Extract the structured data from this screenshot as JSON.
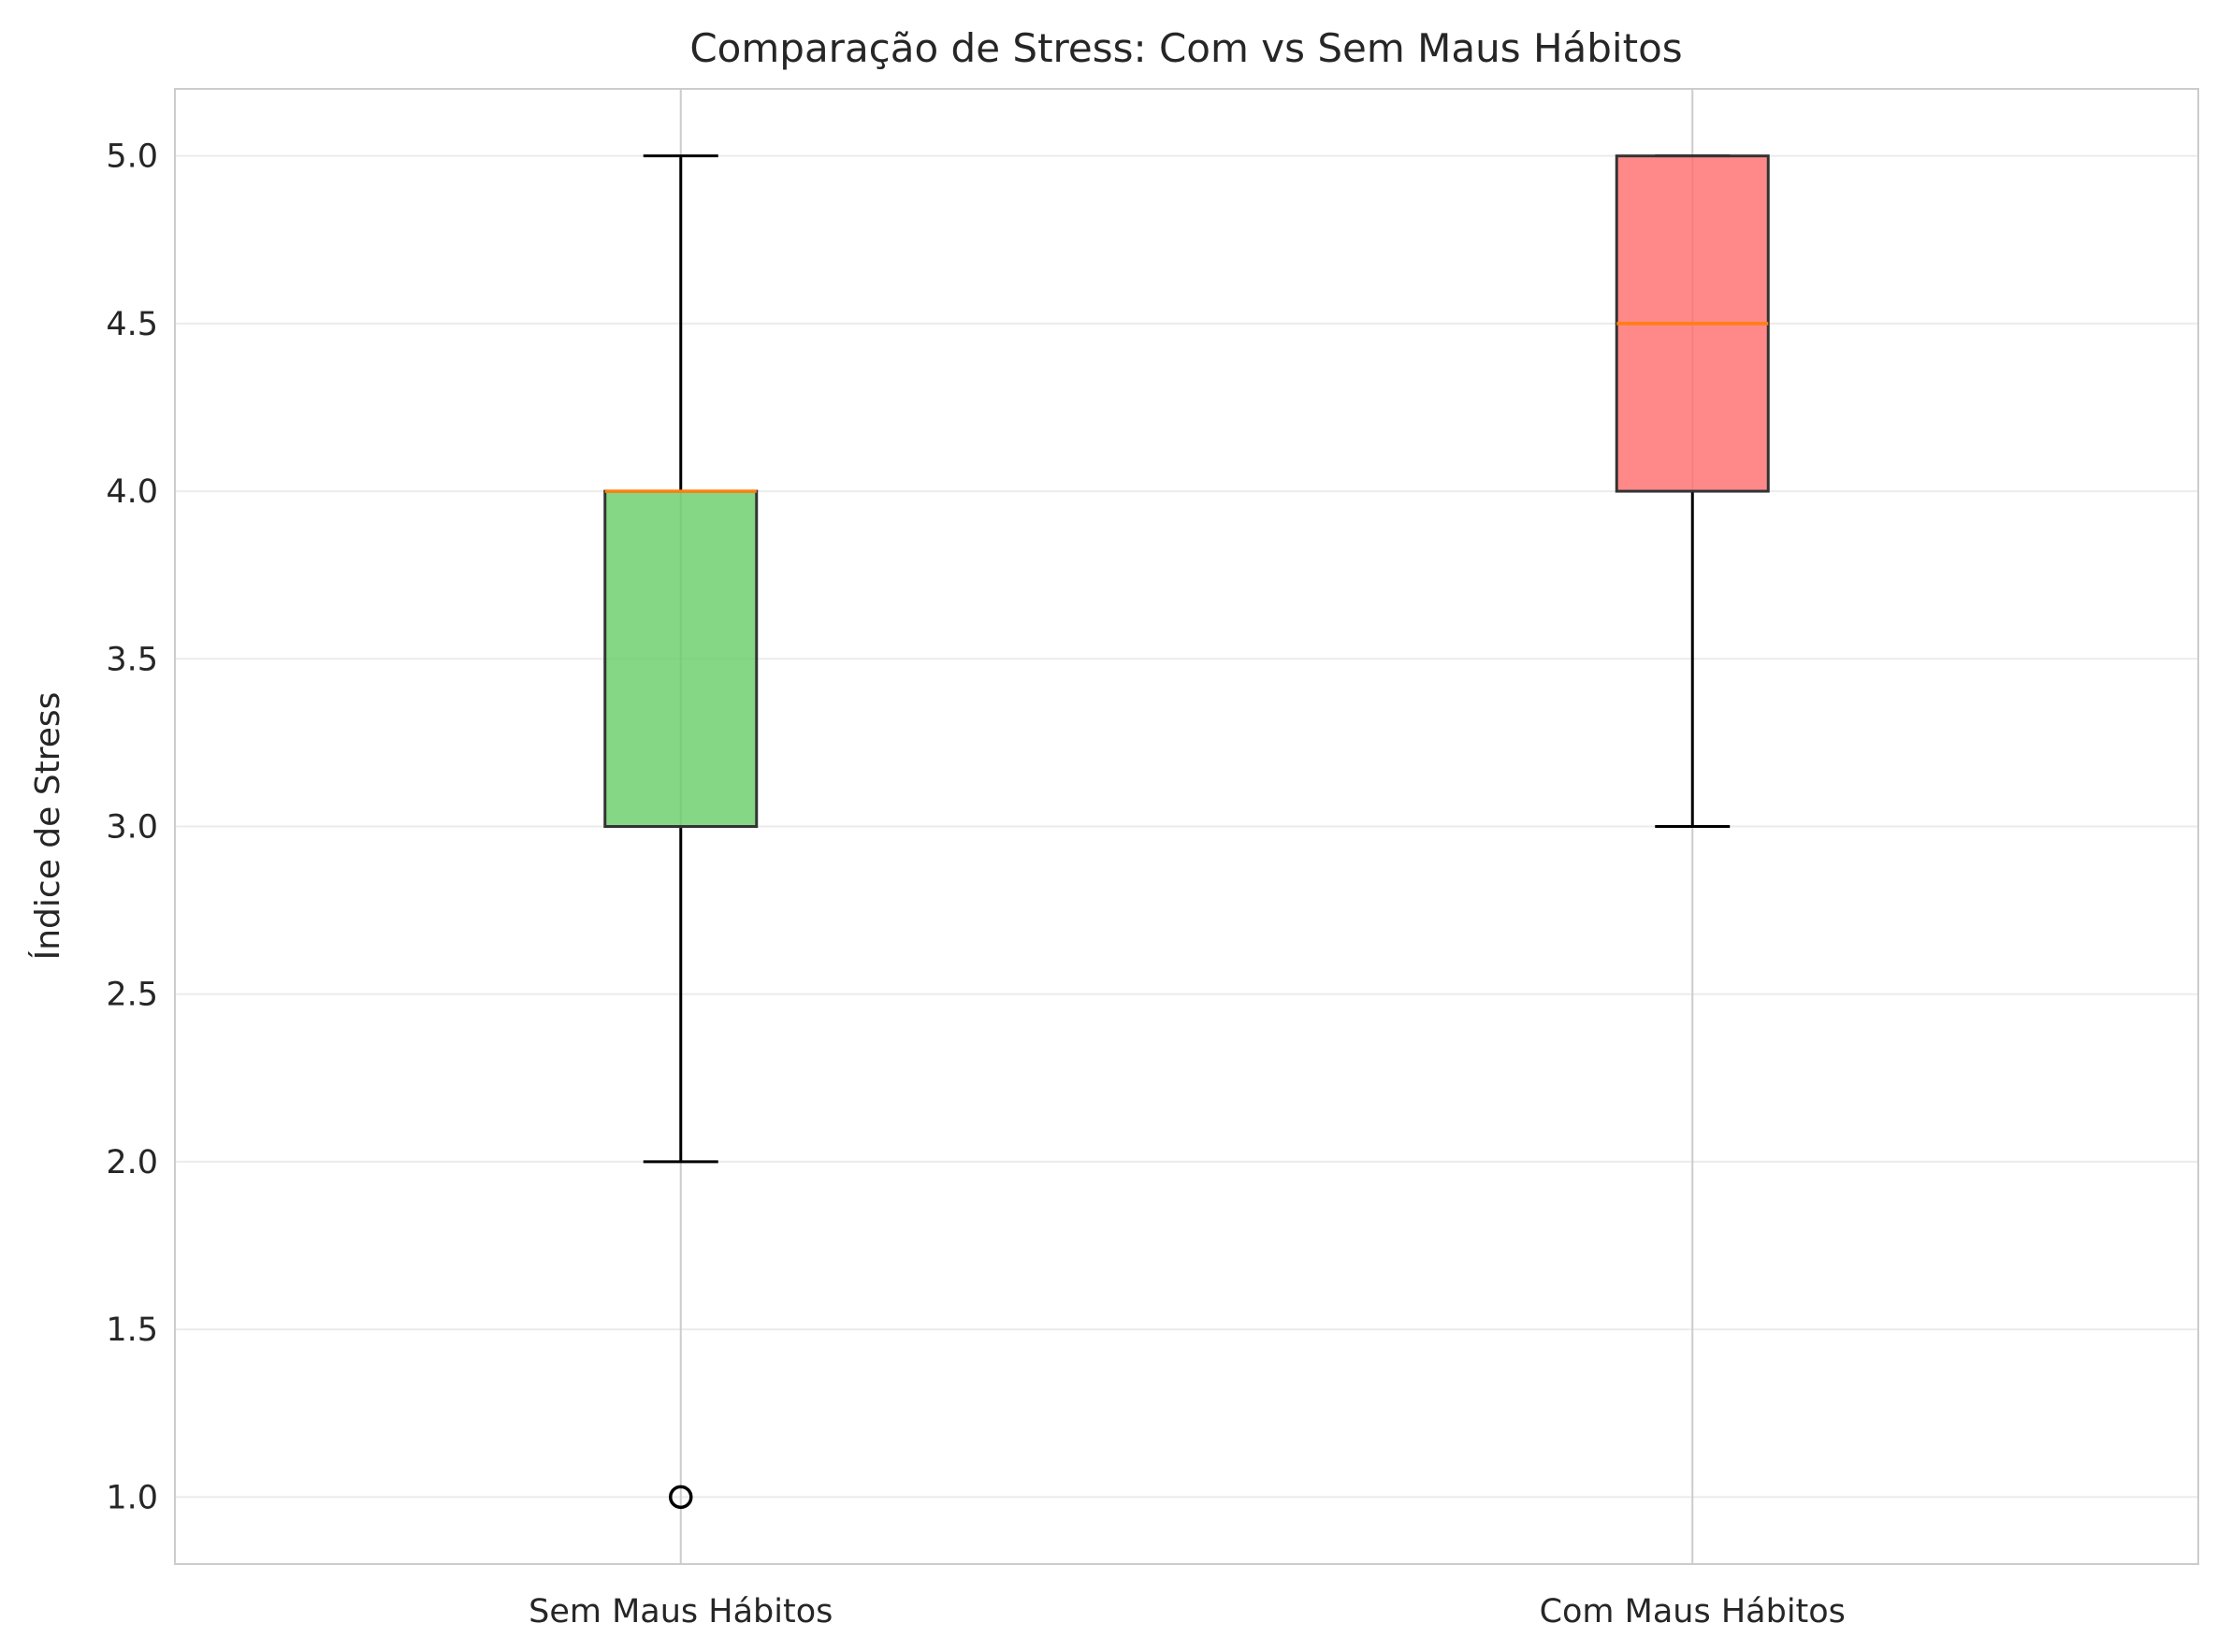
{
  "chart_data": {
    "type": "box",
    "title": "Comparação de Stress: Com vs Sem Maus Hábitos",
    "xlabel": "",
    "ylabel": "Índice de Stress",
    "ylim": [
      0.8,
      5.2
    ],
    "yticks": [
      1.0,
      1.5,
      2.0,
      2.5,
      3.0,
      3.5,
      4.0,
      4.5,
      5.0
    ],
    "ytick_labels": [
      "1.0",
      "1.5",
      "2.0",
      "2.5",
      "3.0",
      "3.5",
      "4.0",
      "4.5",
      "5.0"
    ],
    "grid": true,
    "categories": [
      "Sem Maus Hábitos",
      "Com Maus Hábitos"
    ],
    "boxes": [
      {
        "category": "Sem Maus Hábitos",
        "whisker_low": 2.0,
        "q1": 3.0,
        "median": 4.0,
        "q3": 4.0,
        "whisker_high": 5.0,
        "outliers": [
          1.0
        ],
        "color": "#66cc66"
      },
      {
        "category": "Com Maus Hábitos",
        "whisker_low": 3.0,
        "q1": 4.0,
        "median": 4.5,
        "q3": 5.0,
        "whisker_high": 5.0,
        "outliers": [],
        "color": "#ff6b6b"
      }
    ],
    "median_color": "#ff7f0e"
  }
}
